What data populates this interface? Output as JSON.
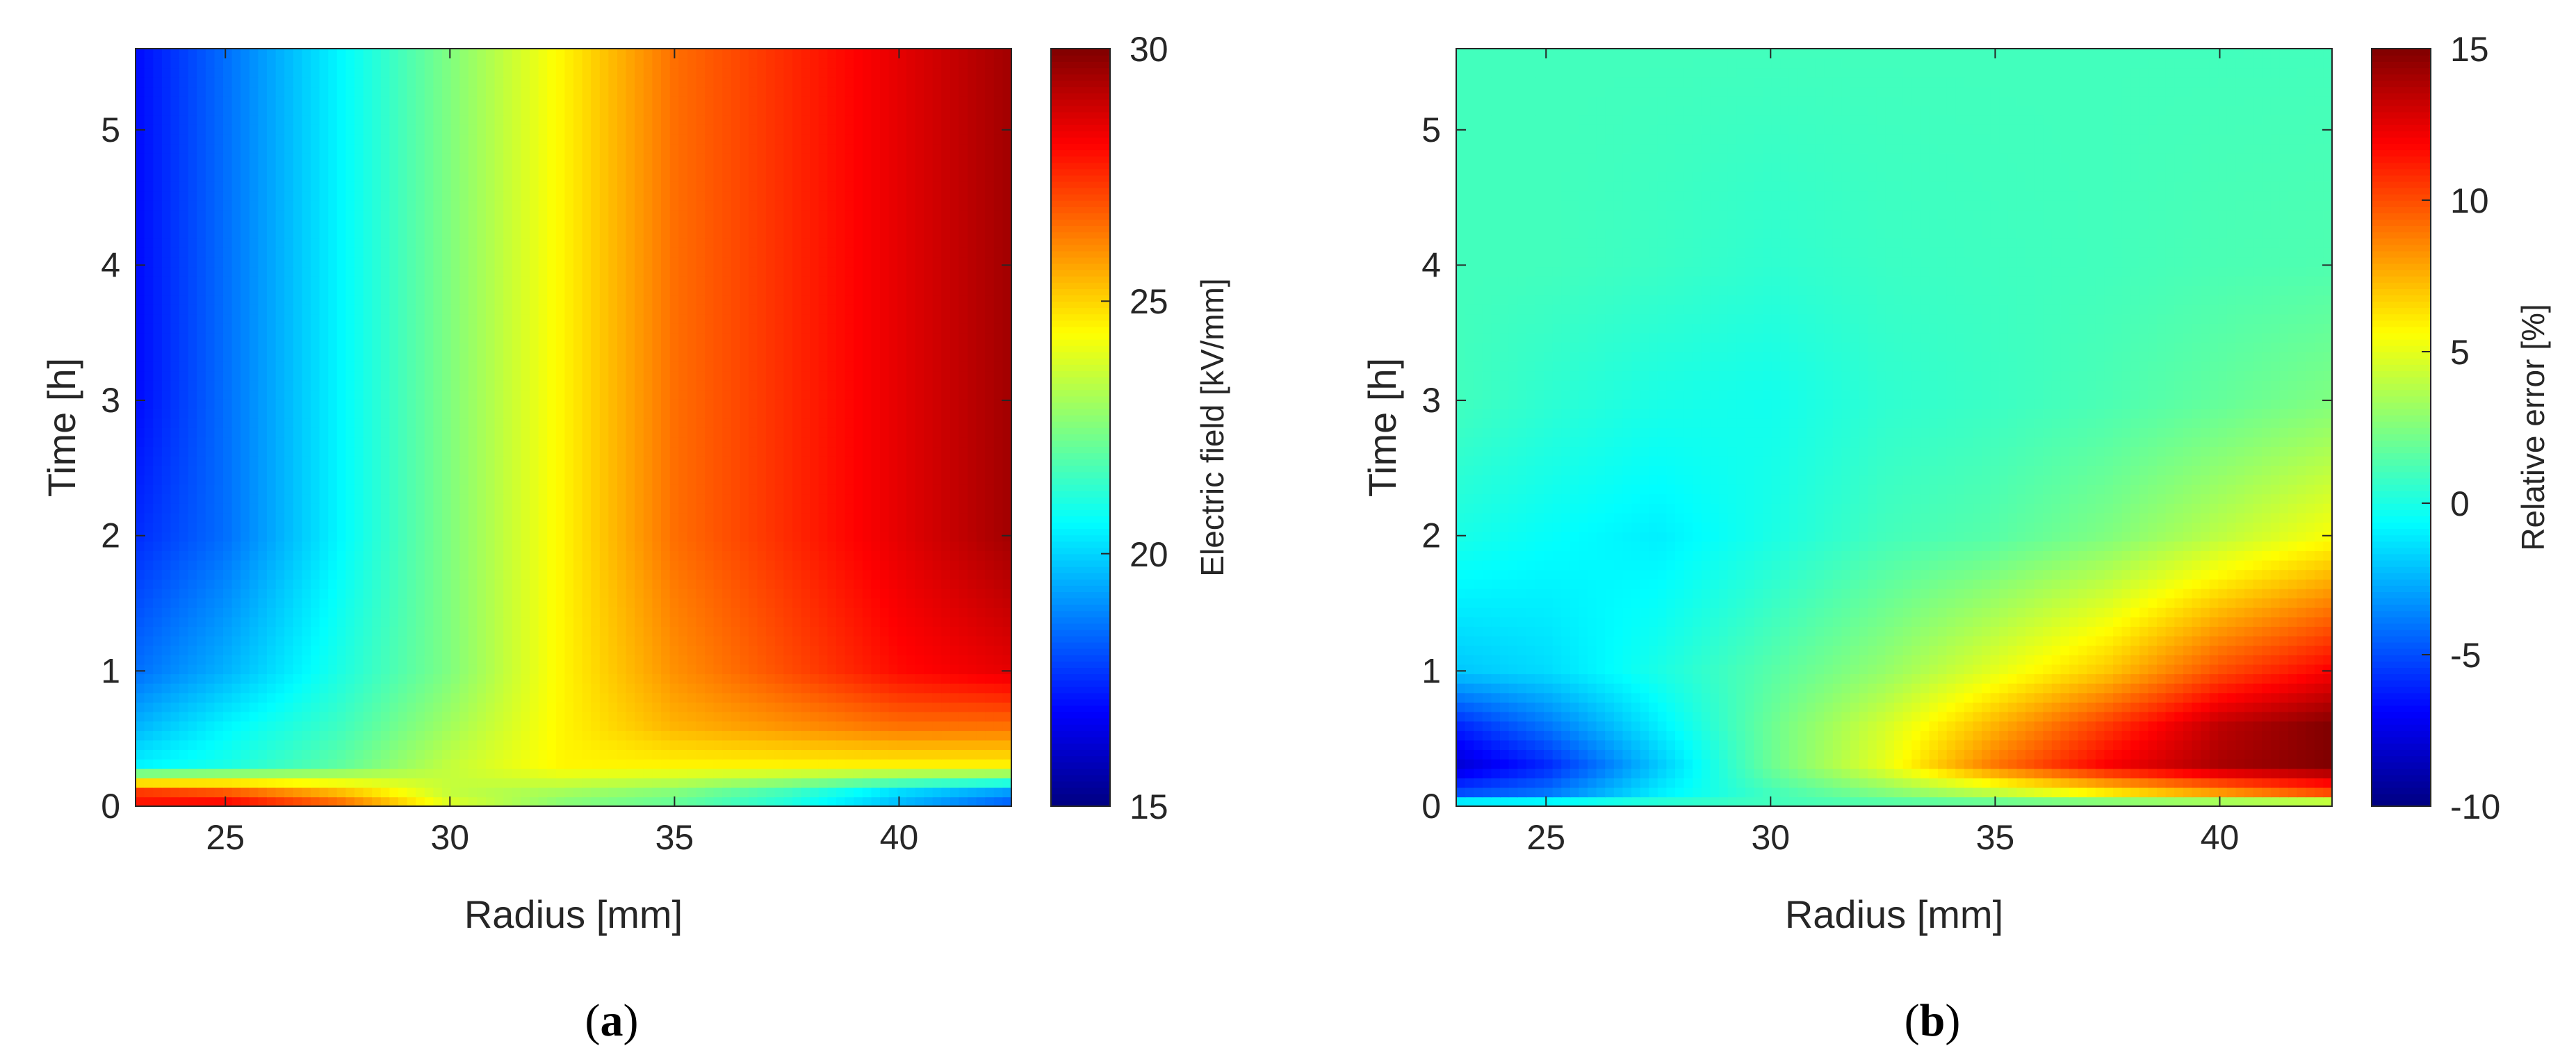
{
  "figure": {
    "panels": [
      {
        "caption_open": "(",
        "caption_letter": "a",
        "caption_close": ")",
        "colorbar_label": "Electric field [kV/mm]",
        "colorbar_ticks": [
          "30",
          "25",
          "20",
          "15"
        ]
      },
      {
        "caption_open": "(",
        "caption_letter": "b",
        "caption_close": ")",
        "colorbar_label": "Relative error [%]",
        "colorbar_ticks": [
          "15",
          "10",
          "5",
          "0",
          "-5",
          "-10"
        ]
      }
    ]
  },
  "chart_data": [
    {
      "type": "heatmap",
      "title": "",
      "xlabel": "Radius [mm]",
      "ylabel": "Time [h]",
      "xlim": [
        23,
        42.5
      ],
      "ylim": [
        0,
        5.6
      ],
      "xticks": [
        25,
        30,
        35,
        40
      ],
      "yticks": [
        0,
        1,
        2,
        3,
        4,
        5
      ],
      "colormap": "jet",
      "clim": [
        15,
        30
      ],
      "colorbar": {
        "label": "Electric field [kV/mm]",
        "ticks": [
          15,
          20,
          25,
          30
        ]
      },
      "x": [
        23,
        25,
        27.5,
        30,
        32.5,
        35,
        37.5,
        40,
        42.5
      ],
      "y": [
        0,
        0.1,
        0.3,
        0.6,
        1,
        2,
        3,
        4,
        5.6
      ],
      "z": [
        [
          28,
          28.5,
          27,
          24,
          22.5,
          22,
          21,
          19.5,
          18
        ],
        [
          27.5,
          27,
          25.5,
          23.5,
          23,
          22.5,
          21.5,
          20,
          19
        ],
        [
          20.5,
          21,
          22,
          23.5,
          24.5,
          24.5,
          24.5,
          24.5,
          24.5
        ],
        [
          19.5,
          20.5,
          21.5,
          23,
          24.5,
          25.5,
          26,
          26.5,
          26.5
        ],
        [
          18.5,
          19.5,
          21,
          22.5,
          24.5,
          26,
          27,
          28,
          28.5
        ],
        [
          17.5,
          18.5,
          20.5,
          22.5,
          24.5,
          26.5,
          27.5,
          28.5,
          29.5
        ],
        [
          17,
          18.5,
          20.5,
          22.5,
          24.5,
          26.5,
          27.5,
          28.5,
          29.5
        ],
        [
          17,
          18.5,
          20.5,
          22.5,
          24.5,
          26.5,
          27.5,
          28.5,
          29.5
        ],
        [
          17,
          18.5,
          20.5,
          22.5,
          24.5,
          26.5,
          27.5,
          28.5,
          29.5
        ]
      ]
    },
    {
      "type": "heatmap",
      "title": "",
      "xlabel": "Radius [mm]",
      "ylabel": "Time [h]",
      "xlim": [
        23,
        42.5
      ],
      "ylim": [
        0,
        5.6
      ],
      "xticks": [
        25,
        30,
        35,
        40
      ],
      "yticks": [
        0,
        1,
        2,
        3,
        4,
        5
      ],
      "colormap": "jet",
      "clim": [
        -10,
        15
      ],
      "colorbar": {
        "label": "Relative error [%]",
        "ticks": [
          -10,
          -5,
          0,
          5,
          10,
          15
        ]
      },
      "x": [
        23,
        25,
        27.5,
        30,
        32.5,
        35,
        37.5,
        40,
        42.5
      ],
      "y": [
        0,
        0.1,
        0.3,
        0.6,
        1,
        2,
        3,
        4,
        5.6
      ],
      "z": [
        [
          1,
          1,
          1,
          1,
          1,
          1,
          1,
          1,
          1
        ],
        [
          -5,
          -4,
          -1,
          1,
          2.5,
          4,
          6,
          8,
          10
        ],
        [
          -8,
          -6,
          -2,
          2,
          5,
          9,
          12,
          14,
          15
        ],
        [
          -6,
          -4,
          -1,
          2,
          4.5,
          7.5,
          10.5,
          13.5,
          15
        ],
        [
          -2,
          -1.5,
          0,
          1.5,
          3,
          5,
          7,
          10,
          12
        ],
        [
          0,
          -0.5,
          -1,
          0,
          1,
          1.5,
          2.5,
          4,
          5.5
        ],
        [
          1,
          0.5,
          0,
          -0.2,
          0.5,
          0.8,
          1.2,
          1.8,
          2.5
        ],
        [
          1,
          1,
          0.8,
          0.5,
          0.8,
          0.9,
          1,
          1.2,
          1.3
        ],
        [
          1,
          1,
          1,
          1,
          1,
          1,
          1,
          1,
          1
        ]
      ]
    }
  ]
}
